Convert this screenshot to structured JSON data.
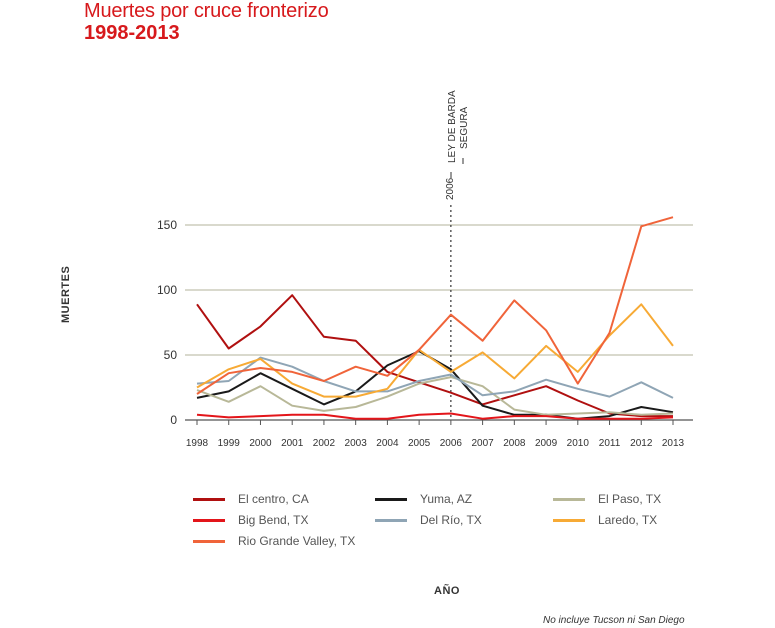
{
  "header": {
    "title": "Muertes por cruce fronterizo",
    "subtitle": "1998-2013"
  },
  "footnote": "No incluye Tucson ni San Diego",
  "annotation": {
    "year_label": "2006",
    "text_line1": "LEY DE BARDA",
    "text_line2": "SEGURA"
  },
  "colors": {
    "title": "#d7191c",
    "grid": "#9a9a7a"
  },
  "chart_data": {
    "type": "line",
    "title": "Muertes por cruce fronterizo",
    "subtitle": "1998-2013",
    "xlabel": "AÑO",
    "ylabel": "MUERTES",
    "x": [
      "1998",
      "1999",
      "2000",
      "2001",
      "2002",
      "2003",
      "2004",
      "2005",
      "2006",
      "2007",
      "2008",
      "2009",
      "2010",
      "2011",
      "2012",
      "2013"
    ],
    "ylim": [
      0,
      150
    ],
    "yticks": [
      "0",
      "50",
      "100",
      "150"
    ],
    "grid": true,
    "legend_position": "bottom",
    "series": [
      {
        "name": "El centro, CA",
        "color": "#b01010",
        "values": [
          89,
          55,
          72,
          96,
          64,
          61,
          37,
          29,
          21,
          12,
          19,
          26,
          15,
          5,
          3,
          3
        ]
      },
      {
        "name": "Yuma, AZ",
        "color": "#1a1a1a",
        "values": [
          17,
          22,
          36,
          24,
          12,
          22,
          42,
          53,
          39,
          11,
          4,
          4,
          1,
          3,
          10,
          6
        ]
      },
      {
        "name": "El Paso, TX",
        "color": "#b8b898",
        "values": [
          23,
          14,
          26,
          11,
          7,
          10,
          18,
          28,
          33,
          26,
          8,
          4,
          5,
          6,
          4,
          5
        ]
      },
      {
        "name": "Big Bend, TX",
        "color": "#e3151a",
        "values": [
          4,
          2,
          3,
          4,
          4,
          1,
          1,
          4,
          5,
          1,
          3,
          3,
          1,
          1,
          1,
          2
        ]
      },
      {
        "name": "Del Río, TX",
        "color": "#8fa5b5",
        "values": [
          28,
          30,
          48,
          41,
          30,
          22,
          22,
          30,
          35,
          19,
          22,
          31,
          24,
          18,
          29,
          17
        ]
      },
      {
        "name": "Laredo, TX",
        "color": "#f7aa35",
        "values": [
          25,
          39,
          47,
          28,
          18,
          18,
          24,
          54,
          37,
          52,
          32,
          57,
          37,
          65,
          89,
          57
        ]
      },
      {
        "name": "Rio Grande Valley, TX",
        "color": "#f0643a",
        "values": [
          20,
          36,
          40,
          37,
          30,
          41,
          34,
          54,
          81,
          61,
          92,
          69,
          28,
          67,
          149,
          156
        ]
      }
    ]
  }
}
